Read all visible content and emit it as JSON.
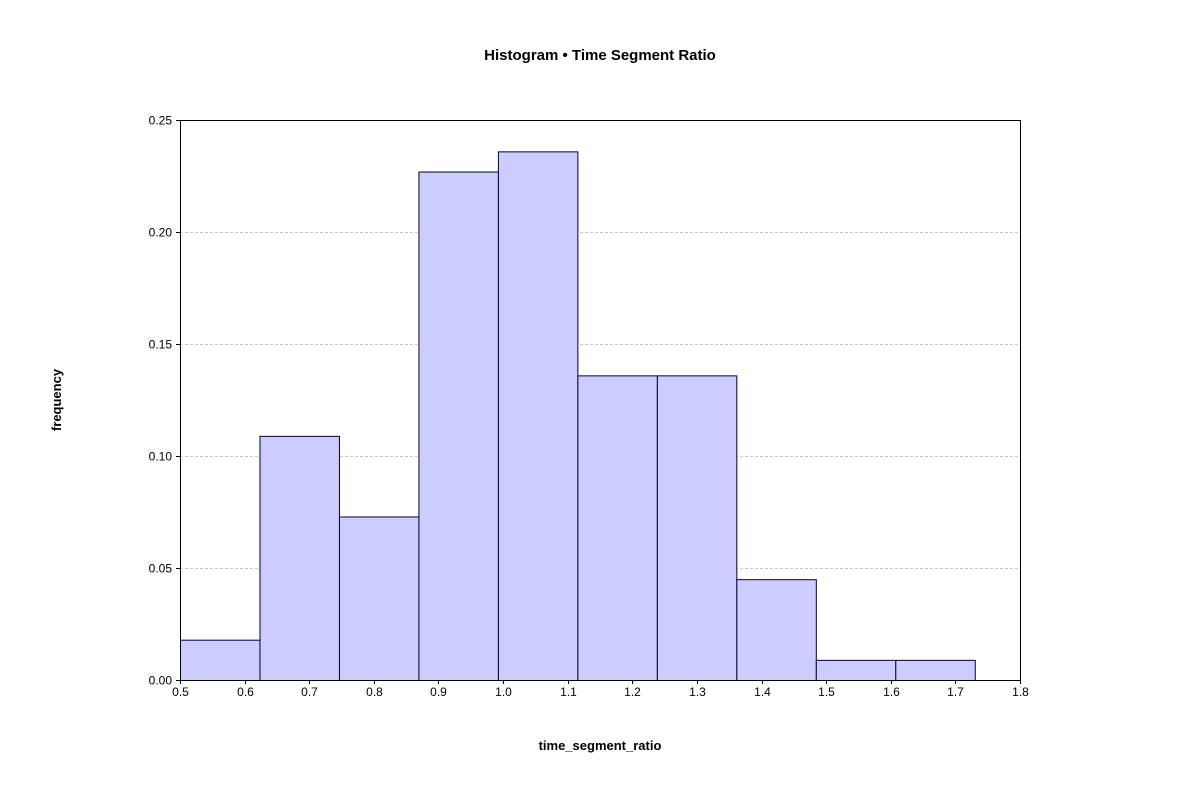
{
  "chart_data": {
    "type": "bar",
    "title": "Histogram • Time Segment Ratio",
    "xlabel": "time_segment_ratio",
    "ylabel": "frequency",
    "xlim": [
      0.5,
      1.8
    ],
    "ylim": [
      0,
      0.25
    ],
    "x_ticks": [
      "0.5",
      "0.6",
      "0.7",
      "0.8",
      "0.9",
      "1.0",
      "1.1",
      "1.2",
      "1.3",
      "1.4",
      "1.5",
      "1.6",
      "1.7",
      "1.8"
    ],
    "y_ticks": [
      "0.00",
      "0.05",
      "0.10",
      "0.15",
      "0.20",
      "0.25"
    ],
    "grid": "horizontal",
    "bins": [
      {
        "start": 0.5,
        "end": 0.623,
        "value": 0.018
      },
      {
        "start": 0.623,
        "end": 0.746,
        "value": 0.109
      },
      {
        "start": 0.746,
        "end": 0.869,
        "value": 0.073
      },
      {
        "start": 0.869,
        "end": 0.992,
        "value": 0.227
      },
      {
        "start": 0.992,
        "end": 1.115,
        "value": 0.236
      },
      {
        "start": 1.115,
        "end": 1.238,
        "value": 0.136
      },
      {
        "start": 1.238,
        "end": 1.361,
        "value": 0.136
      },
      {
        "start": 1.361,
        "end": 1.484,
        "value": 0.045
      },
      {
        "start": 1.484,
        "end": 1.607,
        "value": 0.009
      },
      {
        "start": 1.607,
        "end": 1.73,
        "value": 0.009
      }
    ],
    "bar_color": "#ccccff",
    "bar_edge_color": "#000033"
  }
}
